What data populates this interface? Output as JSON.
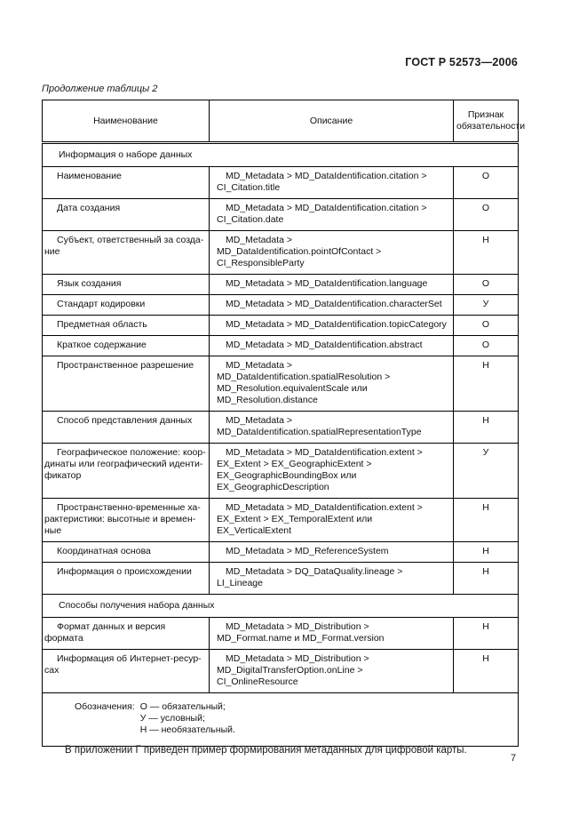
{
  "header": {
    "doc_number": "ГОСТ Р 52573—2006"
  },
  "table": {
    "caption": "Продолжение таблицы 2",
    "columns": [
      "Наименование",
      "Описание",
      "Признак обязательности"
    ],
    "rows": [
      {
        "type": "section",
        "label": "Информация о наборе данных"
      },
      {
        "type": "item",
        "name": [
          "Наименование"
        ],
        "desc": [
          "MD_Metadata > MD_DataIdentification.citation >",
          "CI_Citation.title"
        ],
        "flag": "О"
      },
      {
        "type": "item",
        "name": [
          "Дата создания"
        ],
        "desc": [
          "MD_Metadata > MD_DataIdentification.citation >",
          "CI_Citation.date"
        ],
        "flag": "О"
      },
      {
        "type": "item",
        "name": [
          "Субъект, ответственный за созда-",
          "ние"
        ],
        "desc": [
          "MD_Metadata > MD_DataIdentification.pointOfContact >",
          "CI_ResponsibleParty"
        ],
        "flag": "Н"
      },
      {
        "type": "item",
        "name": [
          "Язык создания"
        ],
        "desc": [
          "MD_Metadata > MD_DataIdentification.language"
        ],
        "flag": "О"
      },
      {
        "type": "item",
        "name": [
          "Стандарт кодировки"
        ],
        "desc": [
          "MD_Metadata > MD_DataIdentification.characterSet"
        ],
        "flag": "У"
      },
      {
        "type": "item",
        "name": [
          "Предметная область"
        ],
        "desc": [
          "MD_Metadata > MD_DataIdentification.topicCategory"
        ],
        "flag": "О"
      },
      {
        "type": "item",
        "name": [
          "Краткое содержание"
        ],
        "desc": [
          "MD_Metadata > MD_DataIdentification.abstract"
        ],
        "flag": "О"
      },
      {
        "type": "item",
        "name": [
          "Пространственное разрешение"
        ],
        "desc": [
          "MD_Metadata >",
          "MD_DataIdentification.spatialResolution >",
          "MD_Resolution.equivalentScale или",
          "MD_Resolution.distance"
        ],
        "flag": "Н"
      },
      {
        "type": "item",
        "name": [
          "Способ представления данных"
        ],
        "desc": [
          "MD_Metadata >",
          "MD_DataIdentification.spatialRepresentationType"
        ],
        "flag": "Н"
      },
      {
        "type": "item",
        "name": [
          "Географическое положение: коор-",
          "динаты или географический иденти-",
          "фикатор"
        ],
        "desc": [
          "MD_Metadata > MD_DataIdentification.extent >",
          "EX_Extent > EX_GeographicExtent >",
          "EX_GeographicBoundingBox или",
          "EX_GeographicDescription"
        ],
        "flag": "У"
      },
      {
        "type": "item",
        "name": [
          "Пространственно-временные ха-",
          "рактеристики: высотные и времен-",
          "ные"
        ],
        "desc": [
          "MD_Metadata > MD_DataIdentification.extent >",
          "EX_Extent > EX_TemporalExtent или",
          "EX_VerticalExtent"
        ],
        "flag": "Н"
      },
      {
        "type": "item",
        "name": [
          "Координатная основа"
        ],
        "desc": [
          "MD_Metadata > MD_ReferenceSystem"
        ],
        "flag": "Н"
      },
      {
        "type": "item",
        "name": [
          "Информация о происхождении"
        ],
        "desc": [
          "MD_Metadata > DQ_DataQuality.lineage > LI_Lineage"
        ],
        "flag": "Н"
      },
      {
        "type": "section",
        "label": "Способы получения набора данных"
      },
      {
        "type": "item",
        "name": [
          "Формат данных и версия формата"
        ],
        "desc": [
          "MD_Metadata > MD_Distribution >",
          "MD_Format.name и MD_Format.version"
        ],
        "flag": "Н"
      },
      {
        "type": "item",
        "name": [
          "Информация об Интернет-ресур-",
          "сах"
        ],
        "desc": [
          "MD_Metadata > MD_Distribution >",
          "MD_DigitalTransferOption.onLine >",
          "CI_OnlineResource"
        ],
        "flag": "Н"
      }
    ],
    "legend": {
      "label": "Обозначения:",
      "items": [
        "О — обязательный;",
        "У — условный;",
        "Н — необязательный."
      ]
    }
  },
  "footer": {
    "note": "В приложении Г приведен пример формирования метаданных для цифровой карты.",
    "page_number": "7"
  }
}
